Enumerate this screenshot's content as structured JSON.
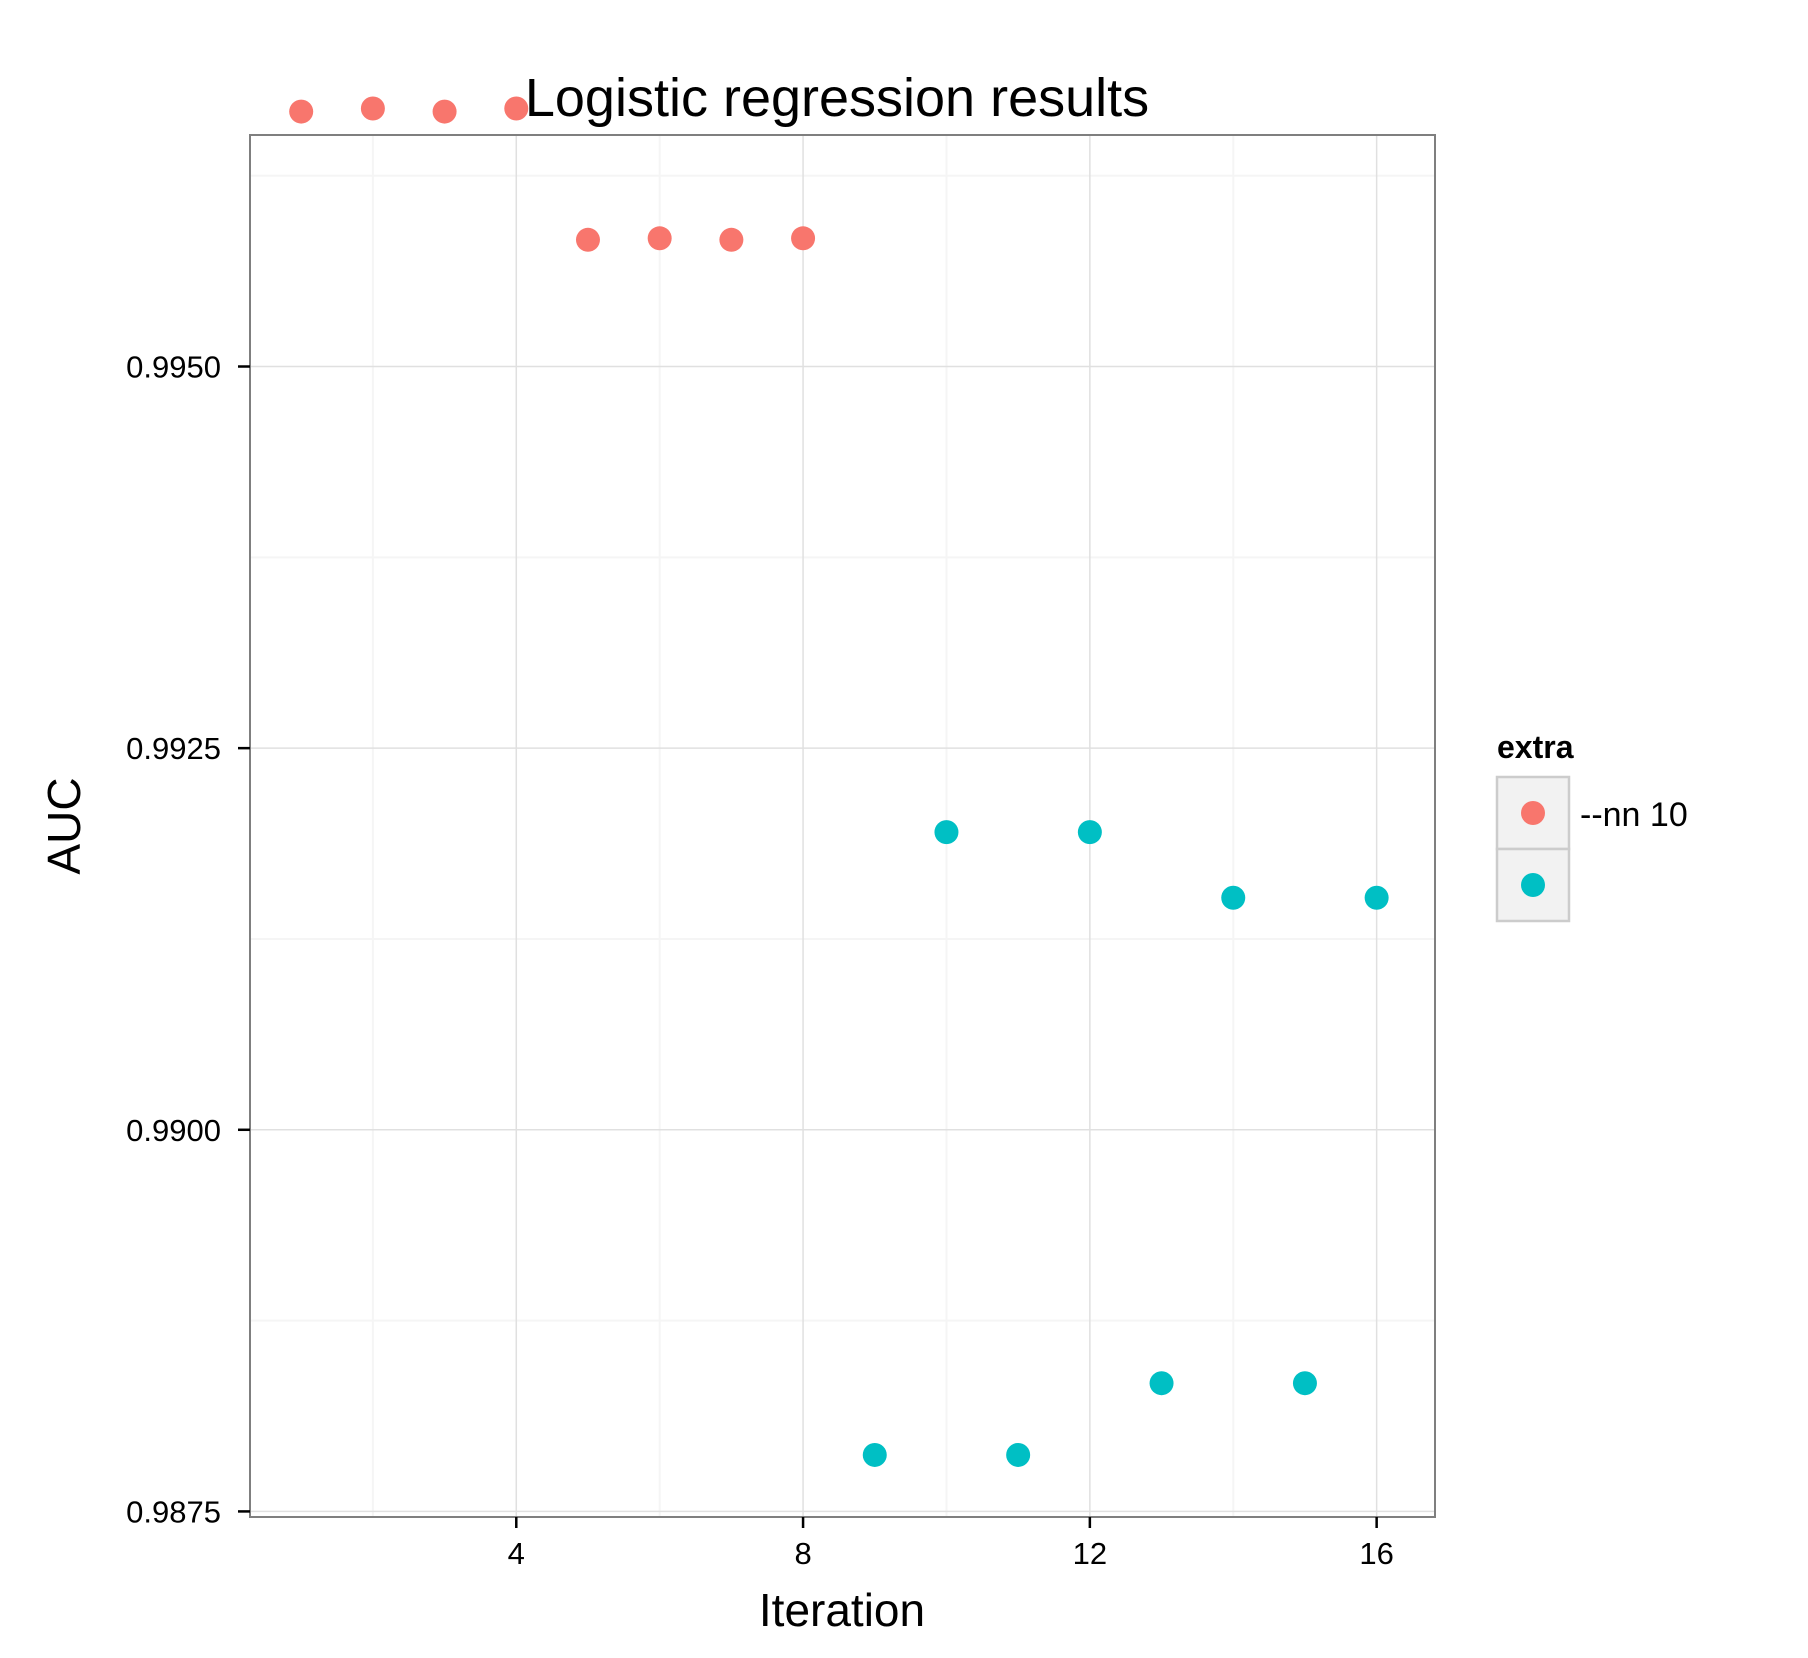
{
  "chart_data": {
    "type": "scatter",
    "title": "Logistic regression results",
    "xlabel": "Iteration",
    "ylabel": "AUC",
    "xlim": [
      0.3,
      16.8
    ],
    "ylim": [
      0.98747,
      0.99651
    ],
    "x_ticks": [
      4,
      8,
      12,
      16
    ],
    "x_tick_labels": [
      "4",
      "8",
      "12",
      "16"
    ],
    "y_ticks": [
      0.9875,
      0.99,
      0.9925,
      0.995
    ],
    "y_tick_labels": [
      "0.9875",
      "0.9900",
      "0.9925",
      "0.9950"
    ],
    "grid": true,
    "legend": {
      "title": "extra",
      "position": "right"
    },
    "series": [
      {
        "name": "--nn 10",
        "color": "#F8766D",
        "x": [
          1,
          2,
          3,
          4,
          5,
          6,
          7,
          8
        ],
        "y": [
          0.99667,
          0.99669,
          0.99667,
          0.99669,
          0.99583,
          0.99584,
          0.99583,
          0.99584
        ]
      },
      {
        "name": "",
        "color": "#00BFC4",
        "x": [
          9,
          10,
          11,
          12,
          13,
          14,
          15,
          16
        ],
        "y": [
          0.98787,
          0.99195,
          0.98787,
          0.99195,
          0.98834,
          0.99152,
          0.98834,
          0.99152
        ]
      }
    ]
  }
}
